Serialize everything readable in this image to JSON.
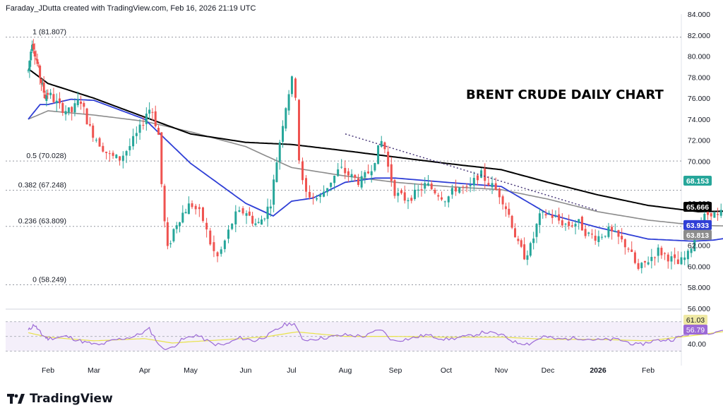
{
  "header": {
    "attribution": "Faraday_JDutta created with TradingView.com, Feb 16, 2026 21:19 UTC"
  },
  "footer": {
    "brand": "TradingView"
  },
  "colors": {
    "up": "#26a69a",
    "down": "#ef5350",
    "ema_fast": "#2f3fd6",
    "ema_mid": "#8c8c8c",
    "ema_slow": "#000000",
    "rsi": "#9c6ad6",
    "rsi_ma": "#e8e24a",
    "rsi_band": "#ede4f7"
  },
  "chart_data": {
    "type": "candlestick",
    "title": "BRENT CRUDE DAILY CHART",
    "y_axis": {
      "min": 56,
      "max": 84,
      "ticks": [
        "84.000",
        "82.000",
        "80.000",
        "78.000",
        "76.000",
        "74.000",
        "72.000",
        "70.000",
        "68.000",
        "66.000",
        "64.000",
        "62.000",
        "60.000",
        "58.000",
        "56.000"
      ]
    },
    "x_axis": {
      "ticks": [
        "Feb",
        "Mar",
        "Apr",
        "May",
        "Jun",
        "Jul",
        "Aug",
        "Sep",
        "Oct",
        "Nov",
        "Dec",
        "2026",
        "Feb"
      ]
    },
    "fib_levels": [
      {
        "label": "1 (81.807)",
        "value": 81.807
      },
      {
        "label": "0.5 (70.028)",
        "value": 70.028
      },
      {
        "label": "0.382 (67.248)",
        "value": 67.248
      },
      {
        "label": "0.236 (63.809)",
        "value": 63.809
      },
      {
        "label": "0 (58.249)",
        "value": 58.249
      }
    ],
    "price_tags": [
      {
        "label": "68.153",
        "value": 68.153,
        "bg": "#26a69a",
        "fg": "#ffffff"
      },
      {
        "label": "65.666",
        "value": 65.666,
        "bg": "#000000",
        "fg": "#ffffff"
      },
      {
        "label": "63.933",
        "value": 63.933,
        "bg": "#2f3fd6",
        "fg": "#ffffff"
      },
      {
        "label": "63.813",
        "value": 63.813,
        "bg": "#8c8c8c",
        "fg": "#ffffff"
      }
    ],
    "trendline": {
      "start": {
        "month": "Aug",
        "price": 72.6
      },
      "end": {
        "month": "2026",
        "price": 65.3
      }
    },
    "price_path": [
      [
        0,
        78.6
      ],
      [
        0.2,
        81.5
      ],
      [
        0.35,
        80.2
      ],
      [
        0.6,
        78
      ],
      [
        0.85,
        76.2
      ],
      [
        1.0,
        76.5
      ],
      [
        1.25,
        75.2
      ],
      [
        1.5,
        74.6
      ],
      [
        1.7,
        76.0
      ],
      [
        1.9,
        73.2
      ],
      [
        2.1,
        71.8
      ],
      [
        2.3,
        70.5
      ],
      [
        2.5,
        70.2
      ],
      [
        2.7,
        71.4
      ],
      [
        2.9,
        73.0
      ],
      [
        3.05,
        74.8
      ],
      [
        3.15,
        75.1
      ],
      [
        3.3,
        72.5
      ],
      [
        3.4,
        65.4
      ],
      [
        3.5,
        61.5
      ],
      [
        3.65,
        63.8
      ],
      [
        3.8,
        64.9
      ],
      [
        4.0,
        66.0
      ],
      [
        4.2,
        64.8
      ],
      [
        4.4,
        61.5
      ],
      [
        4.5,
        60.8
      ],
      [
        4.65,
        62.8
      ],
      [
        4.8,
        64.8
      ],
      [
        5.0,
        65.3
      ],
      [
        5.1,
        64.6
      ],
      [
        5.25,
        63.9
      ],
      [
        5.4,
        64.8
      ],
      [
        5.55,
        66.2
      ],
      [
        5.7,
        70.8
      ],
      [
        5.85,
        74.8
      ],
      [
        6.0,
        77.8
      ],
      [
        6.08,
        76.2
      ],
      [
        6.15,
        69.0
      ],
      [
        6.25,
        67.0
      ],
      [
        6.5,
        66.4
      ],
      [
        6.7,
        67.9
      ],
      [
        6.9,
        69.3
      ],
      [
        7.1,
        68.6
      ],
      [
        7.3,
        68.0
      ],
      [
        7.5,
        69.2
      ],
      [
        7.75,
        72.2
      ],
      [
        7.85,
        69.5
      ],
      [
        8.0,
        66.9
      ],
      [
        8.2,
        66.4
      ],
      [
        8.4,
        66.9
      ],
      [
        8.6,
        67.8
      ],
      [
        8.8,
        67.1
      ],
      [
        9.0,
        66.4
      ],
      [
        9.2,
        67.6
      ],
      [
        9.4,
        67.2
      ],
      [
        9.6,
        68.9
      ],
      [
        9.8,
        67.8
      ],
      [
        10.0,
        66.7
      ],
      [
        10.2,
        64.5
      ],
      [
        10.35,
        62.1
      ],
      [
        10.5,
        61.0
      ],
      [
        10.65,
        62.0
      ],
      [
        10.8,
        64.6
      ],
      [
        11.0,
        65.1
      ],
      [
        11.2,
        64.4
      ],
      [
        11.4,
        63.9
      ],
      [
        11.6,
        64.2
      ],
      [
        11.8,
        63.0
      ],
      [
        12.0,
        62.8
      ],
      [
        12.2,
        63.4
      ],
      [
        12.4,
        62.7
      ],
      [
        12.6,
        61.8
      ],
      [
        12.8,
        59.6
      ],
      [
        13.0,
        60.6
      ],
      [
        13.2,
        61.5
      ],
      [
        13.4,
        60.9
      ],
      [
        13.6,
        60.2
      ],
      [
        13.8,
        61.1
      ],
      [
        13.95,
        63.2
      ],
      [
        14.1,
        64.6
      ],
      [
        14.25,
        65.2
      ],
      [
        14.4,
        64.6
      ],
      [
        14.55,
        65.8
      ],
      [
        14.75,
        67.2
      ],
      [
        14.95,
        69.3
      ],
      [
        15.1,
        68.6
      ],
      [
        15.3,
        67.9
      ],
      [
        15.5,
        68.7
      ],
      [
        15.65,
        68.15
      ]
    ],
    "ema_slow_path": [
      [
        0,
        78.8
      ],
      [
        1,
        77.4
      ],
      [
        2,
        76
      ],
      [
        3,
        74.2
      ],
      [
        4,
        72.6
      ],
      [
        5,
        71.8
      ],
      [
        6,
        71.6
      ],
      [
        7,
        71.0
      ],
      [
        8,
        70.4
      ],
      [
        9,
        69.8
      ],
      [
        10,
        69.2
      ],
      [
        11,
        68.0
      ],
      [
        12,
        66.8
      ],
      [
        13,
        65.8
      ],
      [
        14,
        65.2
      ],
      [
        15,
        65.3
      ],
      [
        15.65,
        65.67
      ]
    ],
    "ema_mid_path": [
      [
        0,
        74.0
      ],
      [
        1,
        74.8
      ],
      [
        2,
        74.4
      ],
      [
        3,
        73.8
      ],
      [
        4,
        72.8
      ],
      [
        5,
        71.4
      ],
      [
        6,
        69.4
      ],
      [
        7,
        68.6
      ],
      [
        8,
        68.0
      ],
      [
        9,
        67.6
      ],
      [
        10,
        67.3
      ],
      [
        11,
        66.4
      ],
      [
        12,
        65.2
      ],
      [
        13,
        64.4
      ],
      [
        14,
        63.9
      ],
      [
        15,
        63.8
      ],
      [
        15.65,
        63.81
      ]
    ],
    "ema_fast_path": [
      [
        0,
        74.0
      ],
      [
        0.6,
        75.4
      ],
      [
        1,
        75.4
      ],
      [
        1.5,
        75.9
      ],
      [
        2,
        75.8
      ],
      [
        3,
        74.0
      ],
      [
        4,
        69.8
      ],
      [
        5,
        66.0
      ],
      [
        5.6,
        64.8
      ],
      [
        6,
        66.2
      ],
      [
        6.4,
        66.5
      ],
      [
        7,
        68.0
      ],
      [
        7.6,
        68.4
      ],
      [
        8,
        68.4
      ],
      [
        9,
        68.0
      ],
      [
        10,
        67.6
      ],
      [
        11,
        65.0
      ],
      [
        12,
        63.7
      ],
      [
        13,
        62.6
      ],
      [
        13.9,
        62.4
      ],
      [
        14.3,
        62.5
      ],
      [
        15,
        63.0
      ],
      [
        15.65,
        63.93
      ]
    ],
    "rsi": {
      "ticks": [
        "40.00"
      ],
      "last_values": [
        {
          "label": "61.03",
          "bg": "#efe9a4",
          "fg": "#131722"
        },
        {
          "label": "56.79",
          "bg": "#9c6ad6",
          "fg": "#ffffff"
        }
      ],
      "path": [
        [
          0,
          58
        ],
        [
          0.3,
          66
        ],
        [
          0.7,
          52
        ],
        [
          1.0,
          47
        ],
        [
          1.4,
          50
        ],
        [
          1.8,
          42
        ],
        [
          2.1,
          38
        ],
        [
          2.4,
          45
        ],
        [
          2.8,
          50
        ],
        [
          3.1,
          60
        ],
        [
          3.35,
          35
        ],
        [
          3.55,
          33
        ],
        [
          3.8,
          45
        ],
        [
          4.1,
          52
        ],
        [
          4.4,
          40
        ],
        [
          4.6,
          38
        ],
        [
          4.9,
          48
        ],
        [
          5.2,
          44
        ],
        [
          5.5,
          52
        ],
        [
          5.85,
          66
        ],
        [
          6.05,
          68
        ],
        [
          6.2,
          45
        ],
        [
          6.6,
          48
        ],
        [
          7.0,
          52
        ],
        [
          7.4,
          50
        ],
        [
          7.7,
          60
        ],
        [
          7.95,
          44
        ],
        [
          8.3,
          47
        ],
        [
          8.6,
          52
        ],
        [
          9.0,
          46
        ],
        [
          9.4,
          50
        ],
        [
          9.7,
          56
        ],
        [
          10.0,
          52
        ],
        [
          10.3,
          42
        ],
        [
          10.6,
          40
        ],
        [
          10.9,
          50
        ],
        [
          11.2,
          46
        ],
        [
          11.6,
          48
        ],
        [
          12.0,
          45
        ],
        [
          12.4,
          46
        ],
        [
          12.8,
          38
        ],
        [
          13.1,
          44
        ],
        [
          13.5,
          46
        ],
        [
          13.9,
          56
        ],
        [
          14.2,
          55
        ],
        [
          14.6,
          60
        ],
        [
          14.9,
          66
        ],
        [
          15.2,
          58
        ],
        [
          15.5,
          60
        ],
        [
          15.65,
          56.79
        ]
      ],
      "ma_path": [
        [
          0,
          55
        ],
        [
          1,
          49
        ],
        [
          2,
          44
        ],
        [
          3,
          47
        ],
        [
          3.6,
          41
        ],
        [
          4.5,
          45
        ],
        [
          5.5,
          50
        ],
        [
          6.1,
          56
        ],
        [
          7,
          50
        ],
        [
          8,
          50
        ],
        [
          9,
          49
        ],
        [
          10,
          49
        ],
        [
          11,
          46
        ],
        [
          12,
          46
        ],
        [
          13,
          44
        ],
        [
          14,
          52
        ],
        [
          15,
          61
        ],
        [
          15.65,
          61.03
        ]
      ]
    }
  }
}
